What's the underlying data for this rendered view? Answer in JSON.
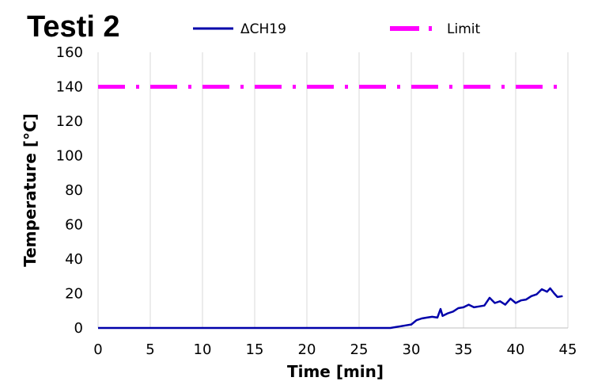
{
  "chart_data": {
    "type": "line",
    "title": "Testi 2",
    "xlabel": "Time [min]",
    "ylabel": "Temperature [°C]",
    "xlim": [
      0,
      45
    ],
    "ylim": [
      0,
      160
    ],
    "x_ticks": [
      0,
      5,
      10,
      15,
      20,
      25,
      30,
      35,
      40,
      45
    ],
    "y_ticks": [
      0,
      20,
      40,
      60,
      80,
      100,
      120,
      140,
      160
    ],
    "grid": "vertical gridlines",
    "legend_position": "top",
    "series": [
      {
        "name": "ΔCH19",
        "color": "#0000aa",
        "style": "solid",
        "x": [
          0,
          28.0,
          28.5,
          29.0,
          29.5,
          30.0,
          30.5,
          31.0,
          31.5,
          32.0,
          32.5,
          32.8,
          33.0,
          33.5,
          34.0,
          34.5,
          35.0,
          35.5,
          36.0,
          36.5,
          37.0,
          37.5,
          38.0,
          38.5,
          39.0,
          39.5,
          40.0,
          40.5,
          41.0,
          41.5,
          42.0,
          42.5,
          43.0,
          43.3,
          43.7,
          44.0,
          44.5
        ],
        "y": [
          0,
          0,
          0.5,
          1.0,
          1.5,
          2.0,
          4.5,
          5.5,
          6.0,
          6.5,
          6.0,
          11.0,
          7.0,
          8.5,
          9.5,
          11.5,
          12.0,
          13.5,
          12.0,
          12.5,
          13.0,
          17.5,
          14.5,
          15.5,
          13.5,
          17.0,
          14.5,
          16.0,
          16.5,
          18.5,
          19.5,
          22.5,
          21.0,
          23.0,
          20.0,
          18.0,
          18.5
        ]
      },
      {
        "name": "Limit",
        "color": "#ff00ff",
        "style": "dash-dot",
        "x": [
          0,
          45
        ],
        "y": [
          140,
          140
        ]
      }
    ]
  }
}
